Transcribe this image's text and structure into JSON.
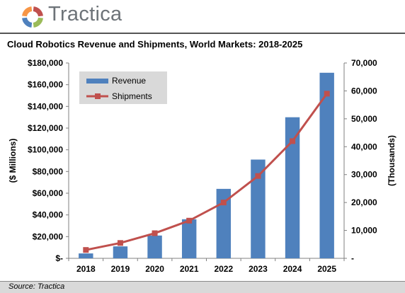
{
  "brand": {
    "name": "Tractica",
    "logo_colors": [
      "#c0504d",
      "#9bbb59",
      "#4f81bd",
      "#f79646"
    ]
  },
  "chart_data": {
    "type": "bar",
    "title": "Cloud Robotics Revenue and Shipments, World Markets: 2018-2025",
    "categories": [
      "2018",
      "2019",
      "2020",
      "2021",
      "2022",
      "2023",
      "2024",
      "2025"
    ],
    "series": [
      {
        "name": "Revenue",
        "kind": "bar",
        "axis": "left",
        "color": "#4f81bd",
        "values": [
          4500,
          11000,
          21000,
          36000,
          64000,
          91000,
          130000,
          171000
        ]
      },
      {
        "name": "Shipments",
        "kind": "line",
        "axis": "right",
        "color": "#c0504d",
        "values": [
          3000,
          5500,
          9000,
          13500,
          20000,
          29500,
          42000,
          59000
        ]
      }
    ],
    "ylabel": "($ Millions)",
    "y2label": "(Thousands)",
    "ylim": [
      0,
      180000
    ],
    "y2lim": [
      0,
      70000
    ],
    "yticks": [
      "$-",
      "$20,000",
      "$40,000",
      "$60,000",
      "$80,000",
      "$100,000",
      "$120,000",
      "$140,000",
      "$160,000",
      "$180,000"
    ],
    "y2ticks": [
      "-",
      "10,000",
      "20,000",
      "30,000",
      "40,000",
      "50,000",
      "60,000",
      "70,000"
    ],
    "grid": false,
    "legend_position": "top-left",
    "legend_background": "#d9d9d9"
  },
  "source": "Source: Tractica"
}
